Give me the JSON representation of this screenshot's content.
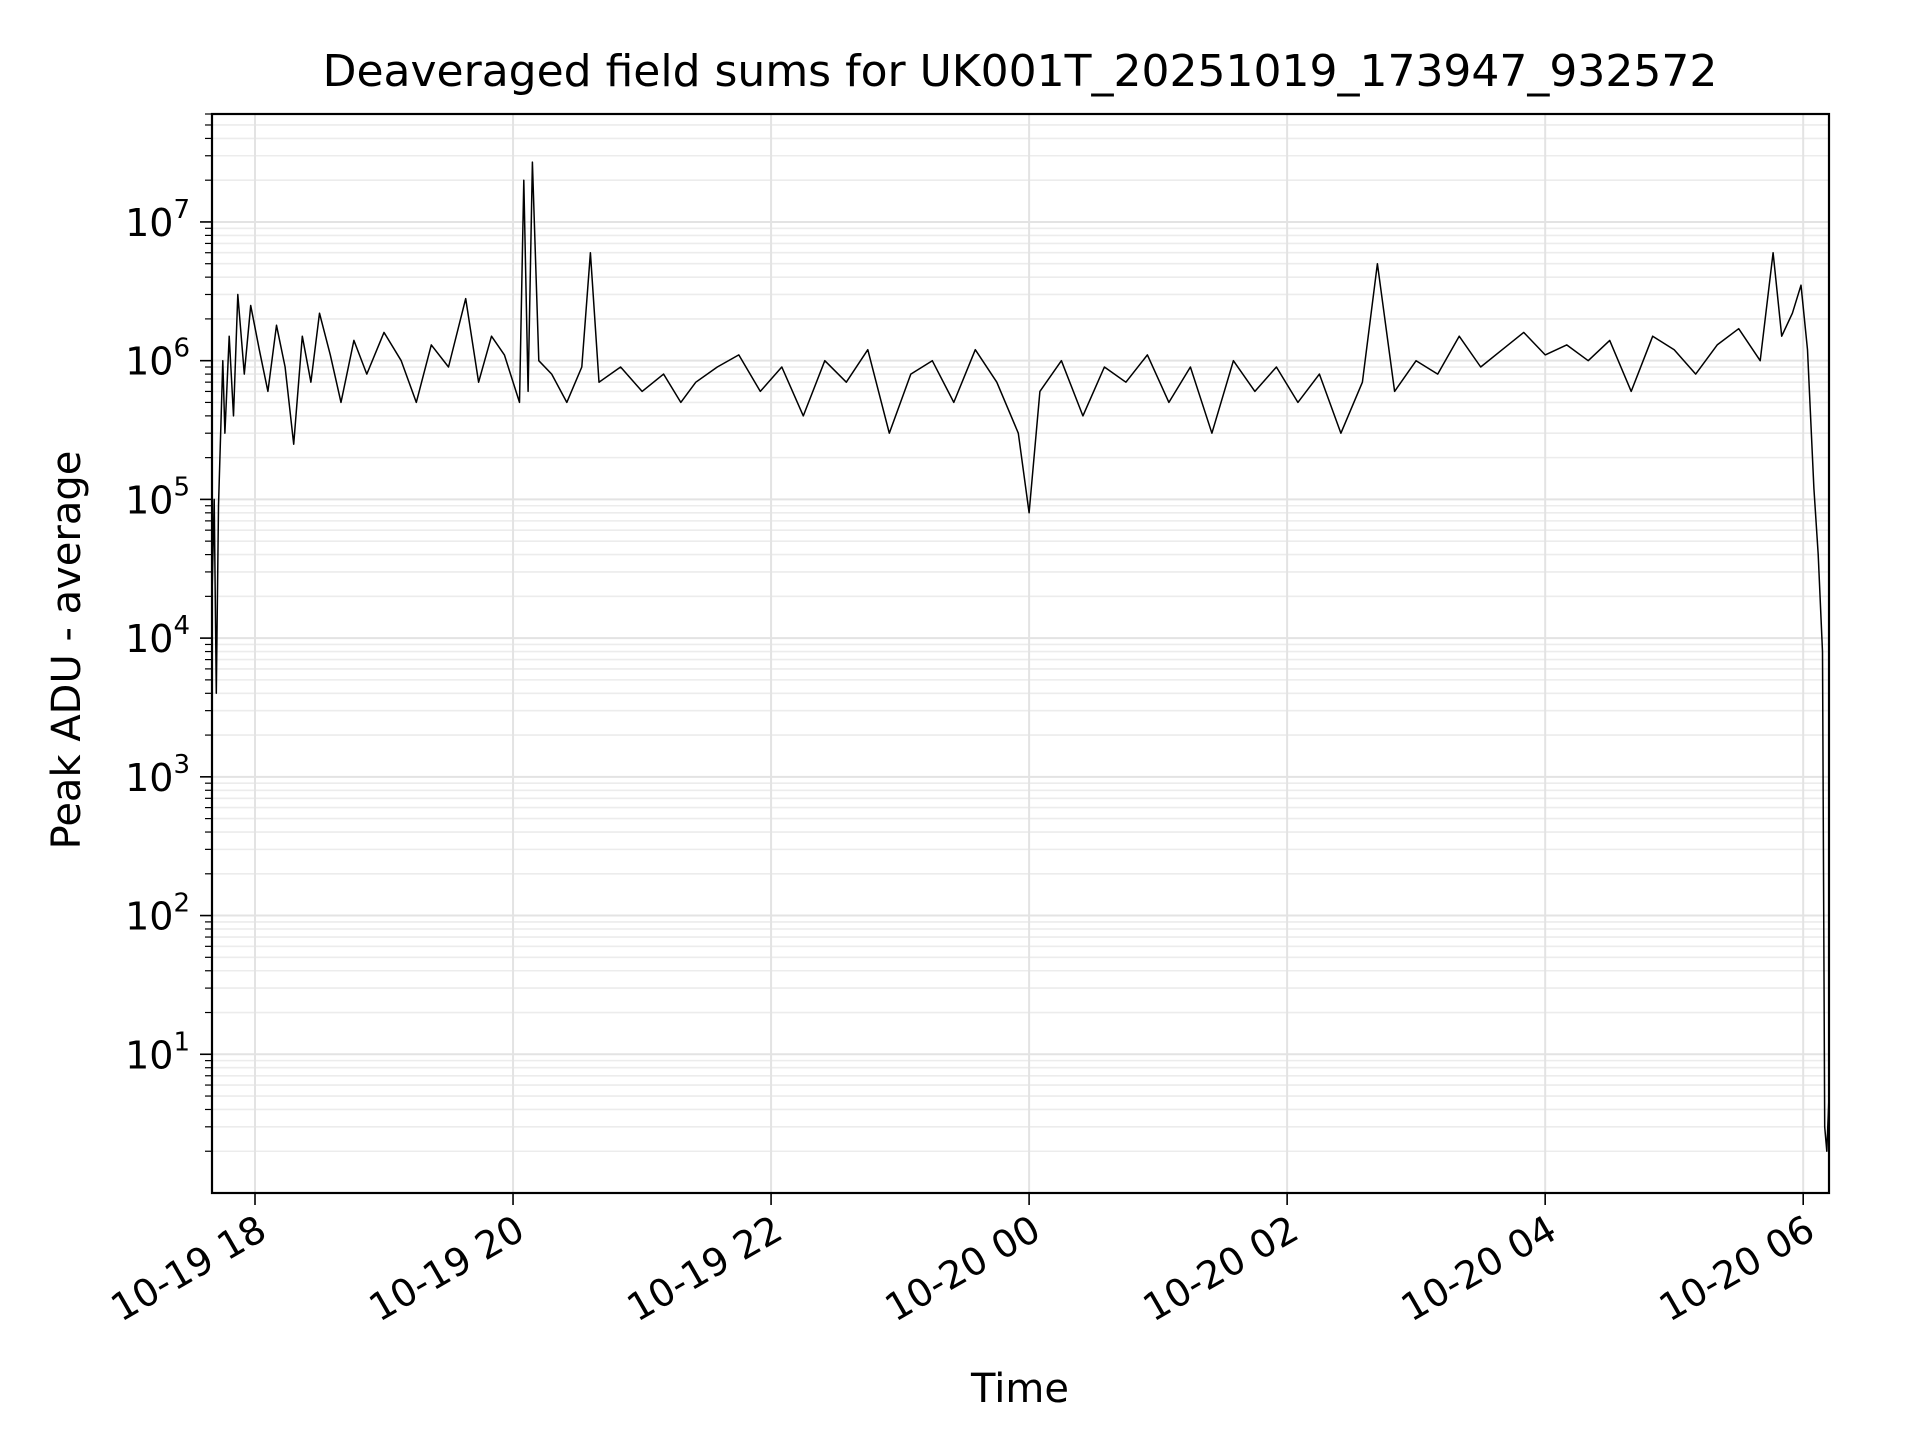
{
  "chart_data": {
    "type": "line",
    "title": "Deaveraged field sums for UK001T_20251019_173947_932572",
    "xlabel": "Time",
    "ylabel": "Peak ADU - average",
    "y_scale": "log",
    "ylim": [
      1.0,
      60000000
    ],
    "xlim": [
      "2025-10-19 17:40",
      "2025-10-20 06:12"
    ],
    "grid": true,
    "line_color": "#000000",
    "x_ticks": [
      {
        "label": "10-19 18",
        "time": "2025-10-19 18:00"
      },
      {
        "label": "10-19 20",
        "time": "2025-10-19 20:00"
      },
      {
        "label": "10-19 22",
        "time": "2025-10-19 22:00"
      },
      {
        "label": "10-20 00",
        "time": "2025-10-20 00:00"
      },
      {
        "label": "10-20 02",
        "time": "2025-10-20 02:00"
      },
      {
        "label": "10-20 04",
        "time": "2025-10-20 04:00"
      },
      {
        "label": "10-20 06",
        "time": "2025-10-20 06:00"
      }
    ],
    "y_ticks": [
      {
        "base": "10",
        "exp": "1",
        "value": 10
      },
      {
        "base": "10",
        "exp": "2",
        "value": 100
      },
      {
        "base": "10",
        "exp": "3",
        "value": 1000
      },
      {
        "base": "10",
        "exp": "4",
        "value": 10000
      },
      {
        "base": "10",
        "exp": "5",
        "value": 100000
      },
      {
        "base": "10",
        "exp": "6",
        "value": 1000000
      },
      {
        "base": "10",
        "exp": "7",
        "value": 10000000
      }
    ],
    "series": [
      {
        "x": [
          "2025-10-19 17:40",
          "2025-10-19 17:41",
          "2025-10-19 17:42",
          "2025-10-19 17:43",
          "2025-10-19 17:45",
          "2025-10-19 17:46",
          "2025-10-19 17:48",
          "2025-10-19 17:50",
          "2025-10-19 17:52",
          "2025-10-19 17:55",
          "2025-10-19 17:58",
          "2025-10-19 18:02",
          "2025-10-19 18:06",
          "2025-10-19 18:10",
          "2025-10-19 18:14",
          "2025-10-19 18:18",
          "2025-10-19 18:22",
          "2025-10-19 18:26",
          "2025-10-19 18:30",
          "2025-10-19 18:35",
          "2025-10-19 18:40",
          "2025-10-19 18:46",
          "2025-10-19 18:52",
          "2025-10-19 19:00",
          "2025-10-19 19:08",
          "2025-10-19 19:15",
          "2025-10-19 19:22",
          "2025-10-19 19:30",
          "2025-10-19 19:38",
          "2025-10-19 19:44",
          "2025-10-19 19:50",
          "2025-10-19 19:56",
          "2025-10-19 20:03",
          "2025-10-19 20:05",
          "2025-10-19 20:07",
          "2025-10-19 20:09",
          "2025-10-19 20:12",
          "2025-10-19 20:18",
          "2025-10-19 20:25",
          "2025-10-19 20:32",
          "2025-10-19 20:36",
          "2025-10-19 20:40",
          "2025-10-19 20:50",
          "2025-10-19 21:00",
          "2025-10-19 21:10",
          "2025-10-19 21:18",
          "2025-10-19 21:25",
          "2025-10-19 21:35",
          "2025-10-19 21:45",
          "2025-10-19 21:55",
          "2025-10-19 22:05",
          "2025-10-19 22:15",
          "2025-10-19 22:25",
          "2025-10-19 22:35",
          "2025-10-19 22:45",
          "2025-10-19 22:55",
          "2025-10-19 23:05",
          "2025-10-19 23:15",
          "2025-10-19 23:25",
          "2025-10-19 23:35",
          "2025-10-19 23:45",
          "2025-10-19 23:55",
          "2025-10-20 00:00",
          "2025-10-20 00:05",
          "2025-10-20 00:15",
          "2025-10-20 00:25",
          "2025-10-20 00:35",
          "2025-10-20 00:45",
          "2025-10-20 00:55",
          "2025-10-20 01:05",
          "2025-10-20 01:15",
          "2025-10-20 01:25",
          "2025-10-20 01:35",
          "2025-10-20 01:45",
          "2025-10-20 01:55",
          "2025-10-20 02:05",
          "2025-10-20 02:15",
          "2025-10-20 02:25",
          "2025-10-20 02:35",
          "2025-10-20 02:42",
          "2025-10-20 02:50",
          "2025-10-20 03:00",
          "2025-10-20 03:10",
          "2025-10-20 03:20",
          "2025-10-20 03:30",
          "2025-10-20 03:40",
          "2025-10-20 03:50",
          "2025-10-20 04:00",
          "2025-10-20 04:10",
          "2025-10-20 04:20",
          "2025-10-20 04:30",
          "2025-10-20 04:40",
          "2025-10-20 04:50",
          "2025-10-20 05:00",
          "2025-10-20 05:10",
          "2025-10-20 05:20",
          "2025-10-20 05:30",
          "2025-10-20 05:40",
          "2025-10-20 05:46",
          "2025-10-20 05:50",
          "2025-10-20 05:55",
          "2025-10-20 05:59",
          "2025-10-20 06:02",
          "2025-10-20 06:05",
          "2025-10-20 06:07",
          "2025-10-20 06:09",
          "2025-10-20 06:10",
          "2025-10-20 06:11",
          "2025-10-20 06:12"
        ],
        "values": [
          20000,
          100000,
          4000,
          90000,
          1000000,
          300000,
          1500000,
          400000,
          3000000,
          800000,
          2500000,
          1200000,
          600000,
          1800000,
          900000,
          250000,
          1500000,
          700000,
          2200000,
          1100000,
          500000,
          1400000,
          800000,
          1600000,
          1000000,
          500000,
          1300000,
          900000,
          2800000,
          700000,
          1500000,
          1100000,
          500000,
          20000000,
          600000,
          27000000,
          1000000,
          800000,
          500000,
          900000,
          6000000,
          700000,
          900000,
          600000,
          800000,
          500000,
          700000,
          900000,
          1100000,
          600000,
          900000,
          400000,
          1000000,
          700000,
          1200000,
          300000,
          800000,
          1000000,
          500000,
          1200000,
          700000,
          300000,
          80000,
          600000,
          1000000,
          400000,
          900000,
          700000,
          1100000,
          500000,
          900000,
          300000,
          1000000,
          600000,
          900000,
          500000,
          800000,
          300000,
          700000,
          5000000,
          600000,
          1000000,
          800000,
          1500000,
          900000,
          1200000,
          1600000,
          1100000,
          1300000,
          1000000,
          1400000,
          600000,
          1500000,
          1200000,
          800000,
          1300000,
          1700000,
          1000000,
          6000000,
          1500000,
          2200000,
          3500000,
          1200000,
          120000,
          40000,
          8000,
          3,
          2,
          5
        ]
      }
    ]
  }
}
